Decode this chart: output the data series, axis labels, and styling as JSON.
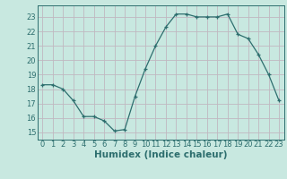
{
  "x": [
    0,
    1,
    2,
    3,
    4,
    5,
    6,
    7,
    8,
    9,
    10,
    11,
    12,
    13,
    14,
    15,
    16,
    17,
    18,
    19,
    20,
    21,
    22,
    23
  ],
  "y": [
    18.3,
    18.3,
    18.0,
    17.2,
    16.1,
    16.1,
    15.8,
    15.1,
    15.2,
    17.5,
    19.4,
    21.0,
    22.3,
    23.2,
    23.2,
    23.0,
    23.0,
    23.0,
    23.2,
    21.8,
    21.5,
    20.4,
    19.0,
    17.2
  ],
  "line_color": "#2d6e6e",
  "marker": "+",
  "bg_color": "#c8e8e0",
  "grid_color": "#c0b8c0",
  "xlabel": "Humidex (Indice chaleur)",
  "ylim": [
    14.5,
    23.8
  ],
  "xlim": [
    -0.5,
    23.5
  ],
  "yticks": [
    15,
    16,
    17,
    18,
    19,
    20,
    21,
    22,
    23
  ],
  "xticks": [
    0,
    1,
    2,
    3,
    4,
    5,
    6,
    7,
    8,
    9,
    10,
    11,
    12,
    13,
    14,
    15,
    16,
    17,
    18,
    19,
    20,
    21,
    22,
    23
  ],
  "font_color": "#2d6e6e",
  "tick_fontsize": 6.0,
  "label_fontsize": 7.5,
  "figsize": [
    3.2,
    2.0
  ],
  "dpi": 100
}
